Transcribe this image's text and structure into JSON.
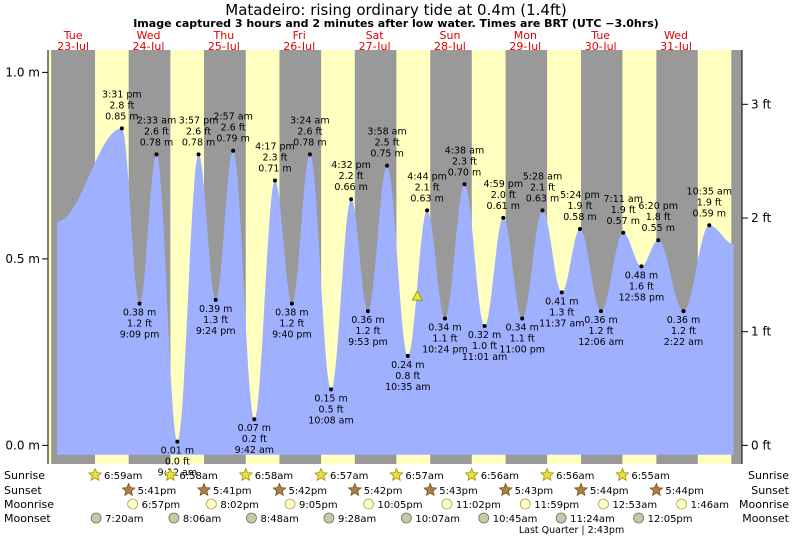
{
  "title": "Matadeiro: rising  ordinary tide at 0.4m (1.4ft)",
  "subtitle": "Image captured 3 hours and 2 minutes after low water. Times are BRT (UTC −3.0hrs)",
  "colors": {
    "day_bg": "#ffffc0",
    "night_bg": "#999999",
    "tide_fill": "#9fb0ff",
    "day_label": "#e00000",
    "grid": "#000000"
  },
  "days": [
    {
      "name": "Tue",
      "date": "23-Jul",
      "x_hours": 48
    },
    {
      "name": "Wed",
      "date": "24-Jul",
      "x_hours": 72
    },
    {
      "name": "Thu",
      "date": "25-Jul",
      "x_hours": 96
    },
    {
      "name": "Fri",
      "date": "26-Jul",
      "x_hours": 120
    },
    {
      "name": "Sat",
      "date": "27-Jul",
      "x_hours": 144
    },
    {
      "name": "Sun",
      "date": "28-Jul",
      "x_hours": 168
    },
    {
      "name": "Mon",
      "date": "29-Jul",
      "x_hours": 192
    },
    {
      "name": "Tue",
      "date": "30-Jul",
      "x_hours": 216
    },
    {
      "name": "Wed",
      "date": "31-Jul",
      "x_hours": 240
    }
  ],
  "chart_data": {
    "type": "area",
    "x_unit": "hours from Mon 22-Jul 00:00",
    "xlim": [
      40.0,
      261.0
    ],
    "ylim": [
      -0.05,
      1.06
    ],
    "left_axis": {
      "unit": "m",
      "ticks": [
        {
          "v": 0.0,
          "label": "0.0 m"
        },
        {
          "v": 0.5,
          "label": "0.5 m"
        },
        {
          "v": 1.0,
          "label": "1.0 m"
        }
      ]
    },
    "right_axis": {
      "unit": "ft",
      "ticks": [
        {
          "v": 0.0,
          "label": "0 ft"
        },
        {
          "v": 0.3048,
          "label": "1 ft"
        },
        {
          "v": 0.6096,
          "label": "2 ft"
        },
        {
          "v": 0.9144,
          "label": "3 ft"
        }
      ]
    },
    "series_start": {
      "x": 42.9,
      "y": 0.6
    },
    "series_end": {
      "x": 258.3,
      "y": 0.54
    },
    "extremes": [
      {
        "x": 63.52,
        "y": 0.85,
        "type": "high",
        "time": "3:31 pm",
        "ft": "2.8 ft",
        "m": "0.85 m"
      },
      {
        "x": 69.15,
        "y": 0.38,
        "type": "low",
        "time": "9:09 pm",
        "ft": "1.2 ft",
        "m": "0.38 m"
      },
      {
        "x": 74.55,
        "y": 0.78,
        "type": "high",
        "time": "2:33 am",
        "ft": "2.6 ft",
        "m": "0.78 m"
      },
      {
        "x": 81.2,
        "y": 0.01,
        "type": "low",
        "time": "9:12 am",
        "ft": "0.0 ft",
        "m": "0.01 m"
      },
      {
        "x": 87.95,
        "y": 0.78,
        "type": "high",
        "time": "3:57 pm",
        "ft": "2.6 ft",
        "m": "0.78 m"
      },
      {
        "x": 93.4,
        "y": 0.39,
        "type": "low",
        "time": "9:24 pm",
        "ft": "1.3 ft",
        "m": "0.39 m"
      },
      {
        "x": 98.95,
        "y": 0.79,
        "type": "high",
        "time": "2:57 am",
        "ft": "2.6 ft",
        "m": "0.79 m"
      },
      {
        "x": 105.7,
        "y": 0.07,
        "type": "low",
        "time": "9:42 am",
        "ft": "0.2 ft",
        "m": "0.07 m"
      },
      {
        "x": 112.28,
        "y": 0.71,
        "type": "high",
        "time": "4:17 pm",
        "ft": "2.3 ft",
        "m": "0.71 m"
      },
      {
        "x": 117.67,
        "y": 0.38,
        "type": "low",
        "time": "9:40 pm",
        "ft": "1.2 ft",
        "m": "0.38 m"
      },
      {
        "x": 123.4,
        "y": 0.78,
        "type": "high",
        "time": "3:24 am",
        "ft": "2.6 ft",
        "m": "0.78 m"
      },
      {
        "x": 130.13,
        "y": 0.15,
        "type": "low",
        "time": "10:08 am",
        "ft": "0.5 ft",
        "m": "0.15 m"
      },
      {
        "x": 136.53,
        "y": 0.66,
        "type": "high",
        "time": "4:32 pm",
        "ft": "2.2 ft",
        "m": "0.66 m"
      },
      {
        "x": 141.88,
        "y": 0.36,
        "type": "low",
        "time": "9:53 pm",
        "ft": "1.2 ft",
        "m": "0.36 m"
      },
      {
        "x": 147.97,
        "y": 0.75,
        "type": "high",
        "time": "3:58 am",
        "ft": "2.5 ft",
        "m": "0.75 m"
      },
      {
        "x": 154.58,
        "y": 0.24,
        "type": "low",
        "time": "10:35 am",
        "ft": "0.8 ft",
        "m": "0.24 m"
      },
      {
        "x": 160.73,
        "y": 0.63,
        "type": "high",
        "time": "4:44 pm",
        "ft": "2.1 ft",
        "m": "0.63 m"
      },
      {
        "x": 166.4,
        "y": 0.34,
        "type": "low",
        "time": "10:24 pm",
        "ft": "1.1 ft",
        "m": "0.34 m"
      },
      {
        "x": 172.63,
        "y": 0.7,
        "type": "high",
        "time": "4:38 am",
        "ft": "2.3 ft",
        "m": "0.70 m"
      },
      {
        "x": 179.02,
        "y": 0.32,
        "type": "low",
        "time": "11:01 am",
        "ft": "1.0 ft",
        "m": "0.32 m"
      },
      {
        "x": 184.98,
        "y": 0.61,
        "type": "high",
        "time": "4:59 pm",
        "ft": "2.0 ft",
        "m": "0.61 m"
      },
      {
        "x": 191.0,
        "y": 0.34,
        "type": "low",
        "time": "11:00 pm",
        "ft": "1.1 ft",
        "m": "0.34 m"
      },
      {
        "x": 197.47,
        "y": 0.63,
        "type": "high",
        "time": "5:28 am",
        "ft": "2.1 ft",
        "m": "0.63 m"
      },
      {
        "x": 203.62,
        "y": 0.41,
        "type": "low",
        "time": "11:37 am",
        "ft": "1.3 ft",
        "m": "0.41 m"
      },
      {
        "x": 209.4,
        "y": 0.58,
        "type": "high",
        "time": "5:24 pm",
        "ft": "1.9 ft",
        "m": "0.58 m"
      },
      {
        "x": 216.1,
        "y": 0.36,
        "type": "low",
        "time": "12:06 am",
        "ft": "1.2 ft",
        "m": "0.36 m"
      },
      {
        "x": 223.18,
        "y": 0.57,
        "type": "high",
        "time": "7:11 am",
        "ft": "1.9 ft",
        "m": "0.57 m"
      },
      {
        "x": 228.97,
        "y": 0.48,
        "type": "low",
        "time": "12:58 pm",
        "ft": "1.6 ft",
        "m": "0.48 m"
      },
      {
        "x": 234.33,
        "y": 0.55,
        "type": "high",
        "time": "6:20 pm",
        "ft": "1.8 ft",
        "m": "0.55 m"
      },
      {
        "x": 242.37,
        "y": 0.36,
        "type": "low",
        "time": "2:22 am",
        "ft": "1.2 ft",
        "m": "0.36 m"
      },
      {
        "x": 250.58,
        "y": 0.59,
        "type": "high",
        "time": "10:35 am",
        "ft": "1.9 ft",
        "m": "0.59 m"
      }
    ],
    "current_marker": {
      "x": 157.6,
      "y": 0.4
    },
    "night_periods": [
      [
        41.0,
        54.98
      ],
      [
        65.68,
        78.98
      ],
      [
        89.68,
        102.97
      ],
      [
        113.7,
        126.97
      ],
      [
        137.7,
        150.95
      ],
      [
        161.72,
        174.95
      ],
      [
        185.72,
        198.93
      ],
      [
        209.73,
        222.93
      ],
      [
        233.73,
        246.92
      ],
      [
        257.6,
        261.0
      ]
    ]
  },
  "legend_rows": {
    "sunrise_label": "Sunrise",
    "sunset_label": "Sunset",
    "moonrise_label": "Moonrise",
    "moonset_label": "Moonset",
    "sunrise": [
      {
        "x": 54.98,
        "t": "6:59am"
      },
      {
        "x": 78.97,
        "t": "6:58am"
      },
      {
        "x": 102.97,
        "t": "6:58am"
      },
      {
        "x": 126.95,
        "t": "6:57am"
      },
      {
        "x": 150.95,
        "t": "6:57am"
      },
      {
        "x": 174.93,
        "t": "6:56am"
      },
      {
        "x": 198.93,
        "t": "6:56am"
      },
      {
        "x": 222.92,
        "t": "6:55am"
      }
    ],
    "sunset": [
      {
        "x": 65.68,
        "t": "5:41pm"
      },
      {
        "x": 89.68,
        "t": "5:41pm"
      },
      {
        "x": 113.7,
        "t": "5:42pm"
      },
      {
        "x": 137.7,
        "t": "5:42pm"
      },
      {
        "x": 161.72,
        "t": "5:43pm"
      },
      {
        "x": 185.72,
        "t": "5:43pm"
      },
      {
        "x": 209.73,
        "t": "5:44pm"
      },
      {
        "x": 233.73,
        "t": "5:44pm"
      }
    ],
    "moonrise": [
      {
        "x": 66.95,
        "t": "6:57pm"
      },
      {
        "x": 92.03,
        "t": "8:02pm"
      },
      {
        "x": 117.08,
        "t": "9:05pm"
      },
      {
        "x": 142.08,
        "t": "10:05pm"
      },
      {
        "x": 167.03,
        "t": "11:02pm"
      },
      {
        "x": 191.98,
        "t": "11:59pm"
      },
      {
        "x": 216.88,
        "t": "12:53am"
      },
      {
        "x": 241.77,
        "t": "1:46am"
      }
    ],
    "moonset": [
      {
        "x": 55.33,
        "t": "7:20am"
      },
      {
        "x": 80.1,
        "t": "8:06am"
      },
      {
        "x": 104.8,
        "t": "8:48am"
      },
      {
        "x": 129.47,
        "t": "9:28am"
      },
      {
        "x": 154.12,
        "t": "10:07am"
      },
      {
        "x": 178.75,
        "t": "10:45am"
      },
      {
        "x": 203.4,
        "t": "11:24am"
      },
      {
        "x": 228.08,
        "t": "12:05pm"
      }
    ],
    "moon_phase": {
      "x": 206.72,
      "text": "Last Quarter | 2:43pm"
    }
  }
}
